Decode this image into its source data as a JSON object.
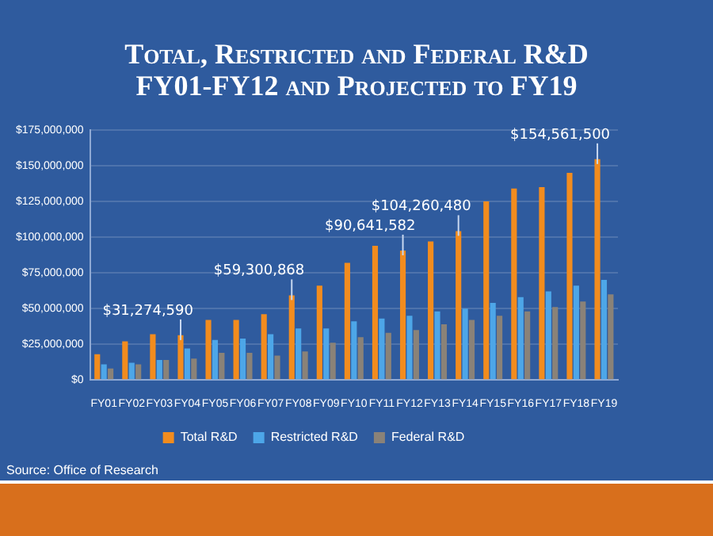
{
  "chart_data": {
    "type": "bar",
    "title": "Total, Restricted and Federal R&D\nFY01-FY12 and Projected to FY19",
    "categories": [
      "FY01",
      "FY02",
      "FY03",
      "FY04",
      "FY05",
      "FY06",
      "FY07",
      "FY08",
      "FY09",
      "FY10",
      "FY11",
      "FY12",
      "FY13",
      "FY14",
      "FY15",
      "FY16",
      "FY17",
      "FY18",
      "FY19"
    ],
    "series": [
      {
        "name": "Total R&D",
        "color": "#f28c1e",
        "values": [
          18000000,
          27000000,
          32000000,
          31274590,
          42000000,
          42000000,
          46000000,
          59300868,
          66000000,
          82000000,
          94000000,
          90641582,
          97000000,
          104260480,
          125000000,
          134000000,
          135000000,
          145000000,
          154561500
        ],
        "value_labels": [
          null,
          null,
          null,
          "$31,274,590",
          null,
          null,
          null,
          "$59,300,868",
          null,
          null,
          null,
          "$90,641,582",
          null,
          "$104,260,480",
          null,
          null,
          null,
          null,
          "$154,561,500"
        ]
      },
      {
        "name": "Restricted R&D",
        "color": "#4da6e8",
        "values": [
          11000000,
          12000000,
          14000000,
          22000000,
          28000000,
          29000000,
          32000000,
          36000000,
          36000000,
          41000000,
          43000000,
          45000000,
          48000000,
          50000000,
          54000000,
          58000000,
          62000000,
          66000000,
          70000000
        ]
      },
      {
        "name": "Federal R&D",
        "color": "#8a8278",
        "values": [
          8000000,
          11000000,
          14000000,
          15000000,
          19000000,
          19000000,
          17000000,
          20000000,
          26000000,
          30000000,
          33000000,
          35000000,
          39000000,
          42000000,
          45000000,
          48000000,
          51000000,
          55000000,
          60000000
        ]
      }
    ],
    "ylim": [
      0,
      175000000
    ],
    "yticks": [
      {
        "value": 0,
        "label": "$0"
      },
      {
        "value": 25000000,
        "label": "$25,000,000"
      },
      {
        "value": 50000000,
        "label": "$50,000,000"
      },
      {
        "value": 75000000,
        "label": "$75,000,000"
      },
      {
        "value": 100000000,
        "label": "$100,000,000"
      },
      {
        "value": 125000000,
        "label": "$125,000,000"
      },
      {
        "value": 150000000,
        "label": "$150,000,000"
      },
      {
        "value": 175000000,
        "label": "$175,000,000"
      }
    ],
    "grid": "y",
    "legend": "bottom",
    "annotations": [
      "Source: Office of Research"
    ]
  }
}
